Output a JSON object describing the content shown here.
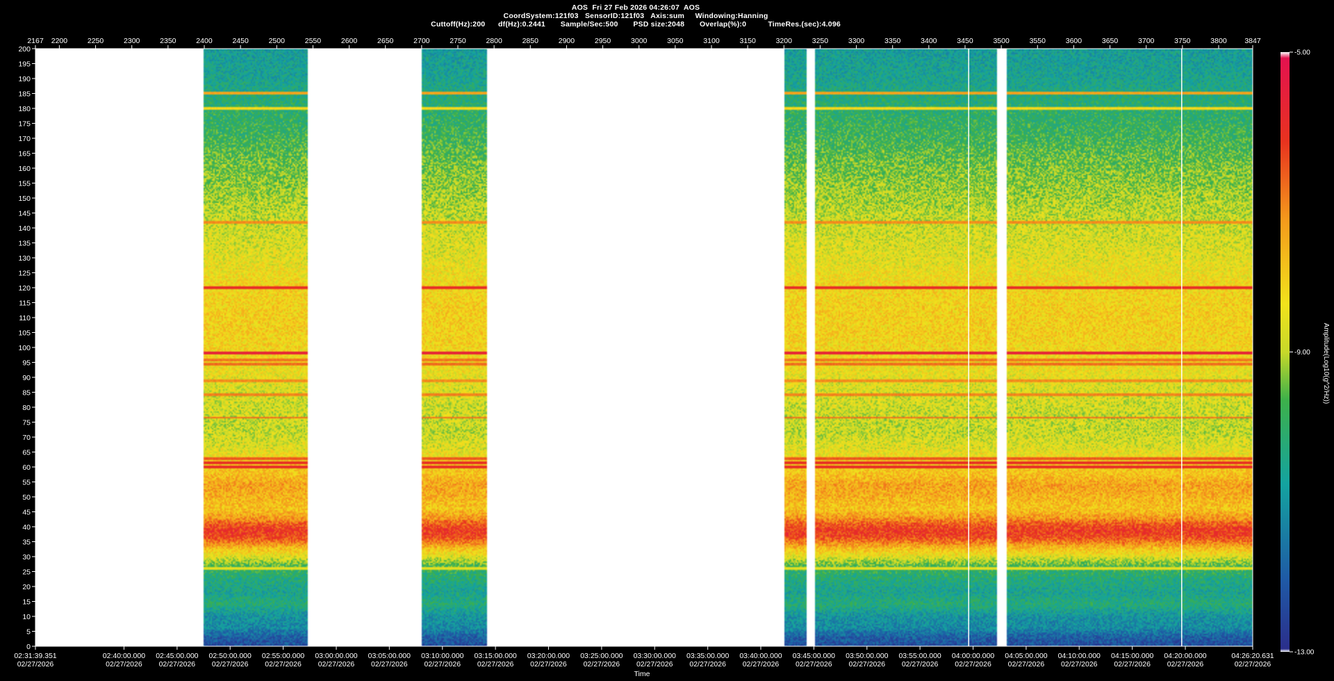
{
  "header": {
    "line1": "AOS  Fri 27 Feb 2026 04:26:07  AOS",
    "line2": "CoordSystem:121f03   SensorID:121f03   Axis:sum     Windowing:Hanning",
    "line3": "Cuttoff(Hz):200      df(Hz):0.2441       Sample/Sec:500       PSD size:2048       Overlap(%):0          TimeRes.(sec):4.096"
  },
  "chart_data": {
    "type": "heatmap",
    "title": "AOS  Fri 27 Feb 2026 04:26:07  AOS",
    "xlabel": "Time",
    "ylabel": "",
    "colorbar_label": "Amplitude(Log10(g^2/Hz))",
    "colorbar_ticks": [
      "-5.00",
      "-9.00",
      "-13.00"
    ],
    "clim": [
      -13,
      -5
    ],
    "ylim": [
      0,
      200
    ],
    "y_ticks": [
      0,
      5,
      10,
      15,
      20,
      25,
      30,
      35,
      40,
      45,
      50,
      55,
      60,
      65,
      70,
      75,
      80,
      85,
      90,
      95,
      100,
      105,
      110,
      115,
      120,
      125,
      130,
      135,
      140,
      145,
      150,
      155,
      160,
      165,
      170,
      175,
      180,
      185,
      190,
      195,
      200
    ],
    "top_axis_range": [
      2167,
      3847
    ],
    "top_ticks": [
      "2167",
      "2200",
      "2250",
      "2300",
      "2350",
      "2400",
      "2450",
      "2500",
      "2550",
      "2600",
      "2650",
      "2700",
      "2750",
      "2800",
      "2850",
      "2900",
      "2950",
      "3000",
      "3050",
      "3100",
      "3150",
      "3200",
      "3250",
      "3300",
      "3350",
      "3400",
      "3450",
      "3500",
      "3550",
      "3600",
      "3650",
      "3700",
      "3750",
      "3800",
      "3847"
    ],
    "top_tick_values": [
      2167,
      2200,
      2250,
      2300,
      2350,
      2400,
      2450,
      2500,
      2550,
      2600,
      2650,
      2700,
      2750,
      2800,
      2850,
      2900,
      2950,
      3000,
      3050,
      3100,
      3150,
      3200,
      3250,
      3300,
      3350,
      3400,
      3450,
      3500,
      3550,
      3600,
      3650,
      3700,
      3750,
      3800,
      3847
    ],
    "bottom_ticks": [
      {
        "time": "02:31:39.351",
        "date": "02/27/2026",
        "index": 2167
      },
      {
        "time": "02:40:00.000",
        "date": "02/27/2026",
        "index": 2289.2
      },
      {
        "time": "02:45:00.000",
        "date": "02/27/2026",
        "index": 2362.5
      },
      {
        "time": "02:50:00.000",
        "date": "02/27/2026",
        "index": 2435.7
      },
      {
        "time": "02:55:00.000",
        "date": "02/27/2026",
        "index": 2508.9
      },
      {
        "time": "03:00:00.000",
        "date": "02/27/2026",
        "index": 2582.2
      },
      {
        "time": "03:05:00.000",
        "date": "02/27/2026",
        "index": 2655.4
      },
      {
        "time": "03:10:00.000",
        "date": "02/27/2026",
        "index": 2728.7
      },
      {
        "time": "03:15:00.000",
        "date": "02/27/2026",
        "index": 2801.9
      },
      {
        "time": "03:20:00.000",
        "date": "02/27/2026",
        "index": 2875.1
      },
      {
        "time": "03:25:00.000",
        "date": "02/27/2026",
        "index": 2948.4
      },
      {
        "time": "03:30:00.000",
        "date": "02/27/2026",
        "index": 3021.6
      },
      {
        "time": "03:35:00.000",
        "date": "02/27/2026",
        "index": 3094.9
      },
      {
        "time": "03:40:00.000",
        "date": "02/27/2026",
        "index": 3168.1
      },
      {
        "time": "03:45:00.000",
        "date": "02/27/2026",
        "index": 3241.3
      },
      {
        "time": "03:50:00.000",
        "date": "02/27/2026",
        "index": 3314.6
      },
      {
        "time": "03:55:00.000",
        "date": "02/27/2026",
        "index": 3387.8
      },
      {
        "time": "04:00:00.000",
        "date": "02/27/2026",
        "index": 3461.1
      },
      {
        "time": "04:05:00.000",
        "date": "02/27/2026",
        "index": 3534.3
      },
      {
        "time": "04:10:00.000",
        "date": "02/27/2026",
        "index": 3607.5
      },
      {
        "time": "04:15:00.000",
        "date": "02/27/2026",
        "index": 3680.8
      },
      {
        "time": "04:20:00.000",
        "date": "02/27/2026",
        "index": 3754.0
      },
      {
        "time": "04:26:20.631",
        "date": "02/27/2026",
        "index": 3847
      }
    ],
    "data_segments": [
      {
        "start": 2400,
        "end": 2542
      },
      {
        "start": 2700,
        "end": 2791
      },
      {
        "start": 3200,
        "end": 3231
      },
      {
        "start": 3243,
        "end": 3494
      },
      {
        "start": 3508,
        "end": 3847
      }
    ],
    "gap_lines": [
      3455,
      3749
    ],
    "spectral_features": {
      "broadband_peak_hz": [
        36,
        42
      ],
      "broadband_profile": [
        [
          0,
          -12.3
        ],
        [
          3,
          -12.0
        ],
        [
          6,
          -11.2
        ],
        [
          10,
          -11.0
        ],
        [
          14,
          -10.2
        ],
        [
          18,
          -10.6
        ],
        [
          22,
          -10.3
        ],
        [
          26,
          -9.9
        ],
        [
          30,
          -8.6
        ],
        [
          33,
          -7.7
        ],
        [
          35,
          -6.9
        ],
        [
          37,
          -6.3
        ],
        [
          39,
          -6.2
        ],
        [
          41,
          -6.6
        ],
        [
          43,
          -7.3
        ],
        [
          46,
          -7.9
        ],
        [
          50,
          -7.6
        ],
        [
          54,
          -7.4
        ],
        [
          57,
          -7.8
        ],
        [
          62,
          -8.2
        ],
        [
          66,
          -8.6
        ],
        [
          72,
          -8.9
        ],
        [
          80,
          -8.8
        ],
        [
          88,
          -8.6
        ],
        [
          96,
          -8.3
        ],
        [
          104,
          -8.1
        ],
        [
          112,
          -8.1
        ],
        [
          120,
          -8.2
        ],
        [
          130,
          -8.6
        ],
        [
          140,
          -8.8
        ],
        [
          150,
          -9.1
        ],
        [
          160,
          -9.4
        ],
        [
          170,
          -9.8
        ],
        [
          180,
          -10.1
        ],
        [
          190,
          -10.6
        ],
        [
          200,
          -10.8
        ]
      ],
      "tonal_lines": [
        {
          "hz": 26,
          "level": -8.6
        },
        {
          "hz": 60,
          "level": -6.0
        },
        {
          "hz": 61.3,
          "level": -6.1
        },
        {
          "hz": 63,
          "level": -6.6
        },
        {
          "hz": 76.5,
          "level": -6.8
        },
        {
          "hz": 84,
          "level": -7.0
        },
        {
          "hz": 89,
          "level": -7.1
        },
        {
          "hz": 94.5,
          "level": -6.8
        },
        {
          "hz": 96,
          "level": -6.9
        },
        {
          "hz": 98.2,
          "level": -5.6
        },
        {
          "hz": 120,
          "level": -6.0
        },
        {
          "hz": 142,
          "level": -7.1
        },
        {
          "hz": 180,
          "level": -8.2
        },
        {
          "hz": 185,
          "level": -7.4
        }
      ]
    }
  }
}
